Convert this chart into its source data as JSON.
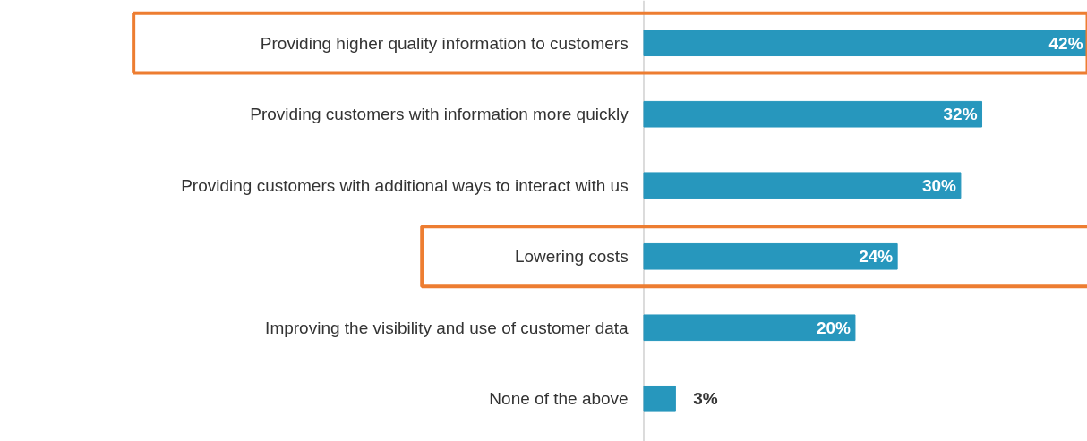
{
  "chart_data": {
    "type": "bar",
    "orientation": "horizontal",
    "categories": [
      "Providing higher quality information to customers",
      "Providing customers with information more quickly",
      "Providing customers with additional ways to interact with us",
      "Lowering costs",
      "Improving the visibility and use of customer data",
      "None of the above"
    ],
    "values": [
      42,
      32,
      30,
      24,
      20,
      3
    ],
    "value_labels": [
      "42%",
      "32%",
      "30%",
      "24%",
      "20%",
      "3%"
    ],
    "color": "#2797bd"
  }
}
